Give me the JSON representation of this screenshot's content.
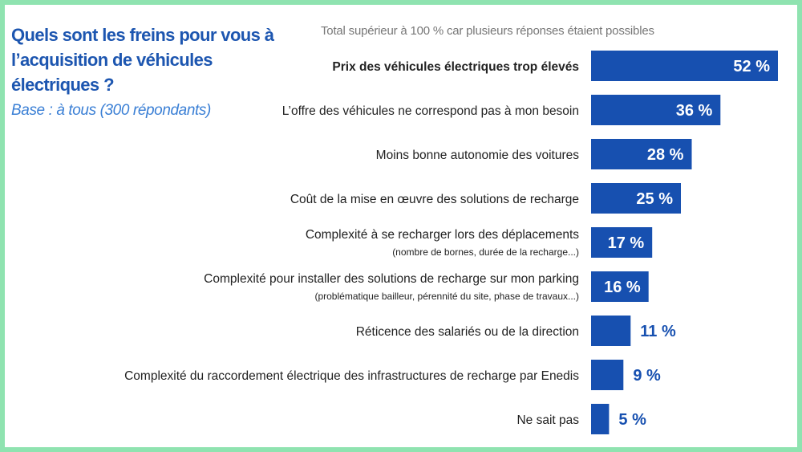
{
  "title": "Quels sont les freins pour vous à l’acquisition de véhicules électriques ?",
  "subtitle": "Base : à tous (300 répondants)",
  "note": "Total supérieur à 100 % car plusieurs réponses étaient possibles",
  "colors": {
    "bar": "#1750b0",
    "value_inside": "#ffffff",
    "value_outside": "#1750b0",
    "frame": "#8fe3b0"
  },
  "chart_data": {
    "type": "bar",
    "orientation": "horizontal",
    "unit": "%",
    "categories": [
      "Prix des véhicules électriques trop élevés",
      "L’offre des véhicules ne correspond pas à mon besoin",
      "Moins bonne autonomie des voitures",
      "Coût de la mise en œuvre des solutions de recharge",
      "Complexité à se recharger lors des déplacements",
      "Complexité pour installer des solutions de recharge sur mon parking",
      "Réticence des salariés ou de la direction",
      "Complexité du raccordement électrique des infrastructures de recharge par Enedis",
      "Ne sait pas"
    ],
    "sublabels": [
      "",
      "",
      "",
      "",
      "(nombre de bornes, durée de la recharge...)",
      "(problématique bailleur, pérennité du site, phase de travaux...)",
      "",
      "",
      ""
    ],
    "values": [
      52,
      36,
      28,
      25,
      17,
      16,
      11,
      9,
      5
    ],
    "value_labels": [
      "52 %",
      "36 %",
      "28 %",
      "25 %",
      "17 %",
      "16 %",
      "11 %",
      "9 %",
      "5 %"
    ],
    "highlight_index": 0,
    "xlim": [
      0,
      52
    ]
  }
}
